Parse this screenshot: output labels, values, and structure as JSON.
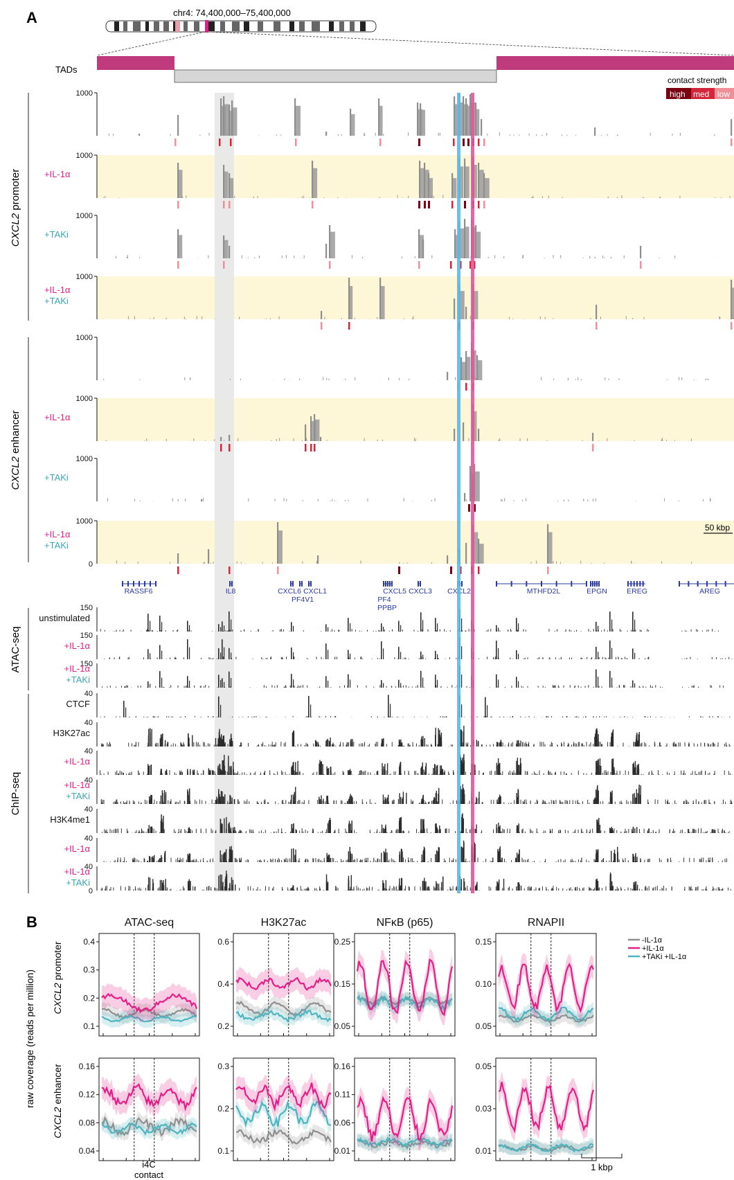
{
  "panel_a": {
    "letter": "A",
    "ideogram_label": "chr4: 74,400,000–75,400,000",
    "tads_label": "TADs",
    "legend": {
      "title": "contact strength",
      "high": "high",
      "med": "med",
      "low": "low"
    },
    "groups": [
      {
        "label_pre": "",
        "label_italic": "CXCL2",
        "label_post": " promoter"
      },
      {
        "label_pre": "",
        "label_italic": "CXCL2",
        "label_post": " enhancer"
      },
      {
        "label": "ATAC-seq"
      },
      {
        "label": "ChIP-seq"
      }
    ],
    "i4c_tracks": [
      {
        "ymax": "1000",
        "cond1": "",
        "cond2": ""
      },
      {
        "ymax": "1000",
        "cond1": "+IL-1α",
        "cond2": ""
      },
      {
        "ymax": "1000",
        "cond1": "",
        "cond2": "+TAKi"
      },
      {
        "ymax": "1000",
        "cond1": "+IL-1α",
        "cond2": "+TAKi"
      },
      {
        "ymax": "1000",
        "cond1": "",
        "cond2": ""
      },
      {
        "ymax": "1000",
        "cond1": "+IL-1α",
        "cond2": ""
      },
      {
        "ymax": "1000",
        "cond1": "",
        "cond2": "+TAKi"
      },
      {
        "ymax": "1000",
        "cond1": "+IL-1α",
        "cond2": "+TAKi"
      }
    ],
    "i4c_ymin": "0",
    "scalebar": "50 kbp",
    "genes": [
      {
        "name": "RASSF6",
        "x": 200,
        "y": 857
      },
      {
        "name": "IL8",
        "x": 333,
        "y": 857
      },
      {
        "name": "CXCL6",
        "x": 418,
        "y": 857
      },
      {
        "name": "CXCL1",
        "x": 455,
        "y": 857
      },
      {
        "name": "PF4V1",
        "x": 437,
        "y": 869
      },
      {
        "name": "CXCL5",
        "x": 570,
        "y": 857
      },
      {
        "name": "CXCL3",
        "x": 607,
        "y": 857
      },
      {
        "name": "PF4",
        "x": 555,
        "y": 869
      },
      {
        "name": "PPBP",
        "x": 559,
        "y": 881
      },
      {
        "name": "CXCL2",
        "x": 663,
        "y": 857
      },
      {
        "name": "MTHFD2L",
        "x": 785,
        "y": 857
      },
      {
        "name": "EPGN",
        "x": 862,
        "y": 857
      },
      {
        "name": "EREG",
        "x": 920,
        "y": 857
      },
      {
        "name": "AREG",
        "x": 1025,
        "y": 857
      }
    ],
    "coverage_tracks": [
      {
        "ymax": "150",
        "label1": "unstimulated",
        "label2": ""
      },
      {
        "ymax": "150",
        "label1": "+IL-1α",
        "label2": ""
      },
      {
        "ymax": "150",
        "label1": "+IL-1α",
        "label2": "+TAKi"
      },
      {
        "ymax": "40",
        "label1": "CTCF",
        "label2": ""
      },
      {
        "ymax": "40",
        "label1": "H3K27ac",
        "label2": ""
      },
      {
        "ymax": "40",
        "label1": "+IL-1α",
        "label2": ""
      },
      {
        "ymax": "40",
        "label1": "+IL-1α",
        "label2": "+TAKi"
      },
      {
        "ymax": "40",
        "label1": "H3K4me1",
        "label2": ""
      },
      {
        "ymax": "40",
        "label1": "+IL-1α",
        "label2": ""
      },
      {
        "ymax": "40",
        "label1": "+IL-1α",
        "label2": "+TAKi"
      }
    ],
    "coverage_ymin": "0"
  },
  "panel_b": {
    "letter": "B",
    "y_axis_label": "raw coverage (reads per million)",
    "row_labels": [
      {
        "italic": "CXCL2",
        "rest": " promoter"
      },
      {
        "italic": "CXCL2",
        "rest": " enhancer"
      }
    ],
    "column_titles": [
      "ATAC-seq",
      "H3K27ac",
      "NFκB (p65)",
      "RNAPII"
    ],
    "legend": [
      "-IL-1α",
      "+IL-1α",
      "+TAKi +IL-1α"
    ],
    "x_label": [
      "i4C",
      "contact"
    ],
    "scalebar": "1 kbp",
    "colors": {
      "minus": "#8f8f8f",
      "plus": "#e21f87",
      "taki": "#4fb4c0"
    },
    "ticks": [
      [
        "0.4",
        "0.3",
        "0.2",
        "0.1"
      ],
      [
        "0.6",
        "0.4",
        "0.2"
      ],
      [
        "0.25",
        "0.15",
        "0.05"
      ],
      [
        "0.15",
        "0.10",
        "0.05"
      ],
      [
        "0.16",
        "0.12",
        "0.08",
        "0.04"
      ],
      [
        "0.3",
        "0.2",
        "0.1"
      ],
      [
        "0.16",
        "0.11",
        "0.06",
        "0.01"
      ],
      [
        "0.05",
        "0.03",
        "0.01"
      ]
    ]
  },
  "colors": {
    "magenta": "#c03b7e",
    "pink_line": "#e2559b",
    "blue_line": "#5cb8e6",
    "yellow_band": "#fdf7d8",
    "grey_band": "#e7e7e7",
    "heat_high": "#7a0010",
    "heat_med": "#d3263a",
    "heat_low": "#ef8f98"
  }
}
